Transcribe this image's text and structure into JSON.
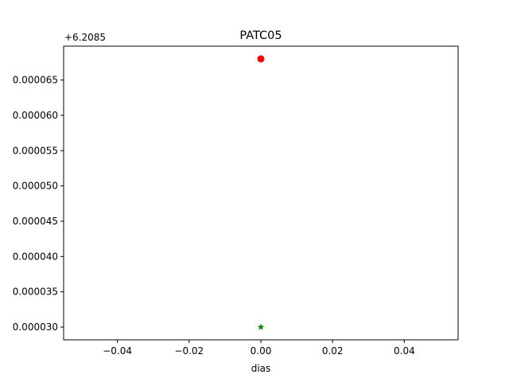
{
  "chart_data": {
    "type": "scatter",
    "title": "PATC05",
    "xlabel": "dias",
    "ylabel": "",
    "y_offset_label": "+6.2085",
    "xlim": [
      -0.055,
      0.055
    ],
    "ylim": [
      2.82e-05,
      6.98e-05
    ],
    "x_ticks": [
      -0.04,
      -0.02,
      0.0,
      0.02,
      0.04
    ],
    "x_tick_labels": [
      "−0.04",
      "−0.02",
      "0.00",
      "0.02",
      "0.04"
    ],
    "y_ticks": [
      3e-05,
      3.5e-05,
      4e-05,
      4.5e-05,
      5e-05,
      5.5e-05,
      6e-05,
      6.5e-05
    ],
    "y_tick_labels": [
      "0.000030",
      "0.000035",
      "0.000040",
      "0.000045",
      "0.000050",
      "0.000055",
      "0.000060",
      "0.000065"
    ],
    "grid": false,
    "series": [
      {
        "marker": "circle",
        "color": "#ff0000",
        "points": [
          {
            "x": 0.0,
            "y": 6.8e-05
          }
        ]
      },
      {
        "marker": "star",
        "color": "#008000",
        "points": [
          {
            "x": 0.0,
            "y": 3e-05
          }
        ]
      }
    ]
  }
}
